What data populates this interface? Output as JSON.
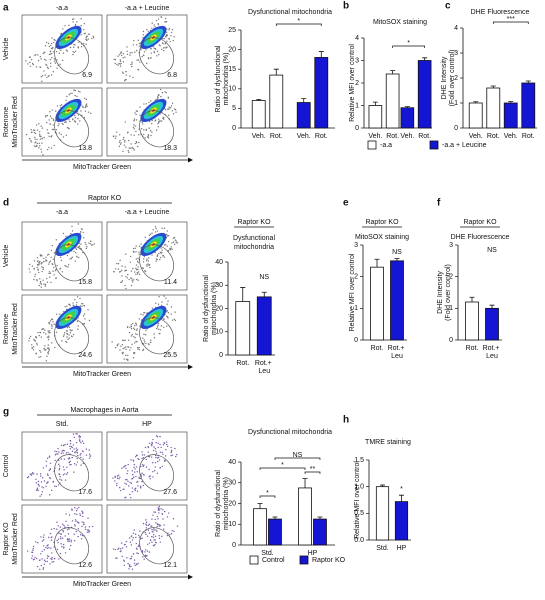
{
  "panel_letters": [
    "a",
    "b",
    "c",
    "d",
    "e",
    "f",
    "g",
    "h"
  ],
  "flow": [
    {
      "columns": [
        "-a.a",
        "-a.a + Leucine"
      ],
      "rows": [
        "Vehicle",
        "Rotenone"
      ],
      "gates": [
        [
          6.9,
          6.8
        ],
        [
          13.8,
          18.3
        ]
      ],
      "y_label": "MitoTracker Red",
      "x_label": "MitoTracker Green"
    },
    {
      "header": "Raptor KO",
      "columns": [
        "-a.a",
        "-a.a + Leucine"
      ],
      "rows": [
        "Vehicle",
        "Rotenone"
      ],
      "gates": [
        [
          15.8,
          11.4
        ],
        [
          24.6,
          25.5
        ]
      ],
      "y_label": "MitoTracker Red",
      "x_label": "MitoTracker Green"
    },
    {
      "header": "Macrophages in Aorta",
      "columns": [
        "Std.",
        "HP"
      ],
      "rows": [
        "Control",
        "Raptor KO"
      ],
      "gates": [
        [
          17.6,
          27.6
        ],
        [
          12.6,
          12.1
        ]
      ],
      "y_label": "MitoTracker Red",
      "x_label": "MitoTracker Green"
    }
  ],
  "chart_data": [
    {
      "type": "bar",
      "title": [
        "Dysfunctional mitochondria"
      ],
      "y_label": [
        "Ratio of dysfunctional",
        "mitochondria (%)"
      ],
      "categories": [
        "Veh.",
        "Rot."
      ],
      "group_by": "series",
      "series": [
        {
          "color": "#ffffff",
          "values": [
            7,
            13.5
          ],
          "errors": [
            0.3,
            1.5
          ]
        },
        {
          "color": "#1515d4",
          "values": [
            6.5,
            18
          ],
          "errors": [
            1,
            1.5
          ]
        }
      ],
      "ylim": [
        0,
        25
      ],
      "yticks": [
        0,
        5,
        10,
        15,
        20,
        25
      ],
      "significance": [
        "*"
      ]
    },
    {
      "type": "bar",
      "title": [
        "MitoSOX staining"
      ],
      "y_label": [
        "Relative MFI over control"
      ],
      "categories": [
        "Veh.",
        "Rot."
      ],
      "group_by": "series",
      "series": [
        {
          "name": "-a.a",
          "color": "#ffffff",
          "values": [
            1,
            2.4
          ],
          "errors": [
            0.15,
            0.15
          ]
        },
        {
          "name": "-a.a + Leucine",
          "color": "#1515d4",
          "values": [
            0.9,
            3.0
          ],
          "errors": [
            0.05,
            0.12
          ]
        }
      ],
      "ylim": [
        0,
        4
      ],
      "yticks": [
        0,
        1,
        2,
        3,
        4
      ],
      "significance": [
        "*"
      ]
    },
    {
      "type": "bar",
      "title": [
        "DHE Fluorescence"
      ],
      "y_label": [
        "DHE Intensity",
        "(Fold over control)"
      ],
      "categories": [
        "Veh.",
        "Rot."
      ],
      "group_by": "series",
      "series": [
        {
          "color": "#ffffff",
          "values": [
            1.0,
            1.6
          ],
          "errors": [
            0.05,
            0.08
          ]
        },
        {
          "color": "#1515d4",
          "values": [
            1.0,
            1.8
          ],
          "errors": [
            0.06,
            0.08
          ]
        }
      ],
      "ylim": [
        0,
        4
      ],
      "yticks": [
        0,
        1,
        2,
        3,
        4
      ],
      "significance": [
        "***"
      ]
    },
    {
      "type": "bar",
      "title": [
        "Raptor KO",
        "Dysfunctional",
        "mitochondria"
      ],
      "y_label": [
        "Ratio of dysfunctional",
        "mitochondria (%)"
      ],
      "categories": [
        "Rot.",
        "Rot.+ Leu"
      ],
      "values": [
        23,
        25
      ],
      "errors": [
        6,
        2
      ],
      "colors": [
        "#ffffff",
        "#1515d4"
      ],
      "ylim": [
        0,
        40
      ],
      "yticks": [
        0,
        10,
        20,
        30,
        40
      ],
      "significance": [
        "NS"
      ]
    },
    {
      "type": "bar",
      "title": [
        "Raptor KO",
        "MitoSOX staining"
      ],
      "y_label": [
        "Relative MFI over control"
      ],
      "categories": [
        "Rot.",
        "Rot.+ Leu"
      ],
      "values": [
        2.3,
        2.5
      ],
      "errors": [
        0.25,
        0.07
      ],
      "colors": [
        "#ffffff",
        "#1515d4"
      ],
      "ylim": [
        0,
        3
      ],
      "yticks": [
        0,
        1,
        2,
        3
      ],
      "significance": [
        "NS"
      ]
    },
    {
      "type": "bar",
      "title": [
        "Raptor KO",
        "DHE Fluorescence"
      ],
      "y_label": [
        "DHE Intensity",
        "(Fold over control)"
      ],
      "categories": [
        "Rot.",
        "Rot.+ Leu"
      ],
      "values": [
        1.2,
        1.0
      ],
      "errors": [
        0.15,
        0.1
      ],
      "colors": [
        "#ffffff",
        "#1515d4"
      ],
      "ylim": [
        0,
        3
      ],
      "yticks": [
        0,
        1,
        2,
        3
      ],
      "significance": [
        "NS"
      ]
    },
    {
      "type": "bar",
      "title": [
        "Dysfunctional mitochondria"
      ],
      "y_label": [
        "Ratio of dysfunctional",
        "mitochondria (%)"
      ],
      "categories": [
        "Std.",
        "HP"
      ],
      "group_by": "category",
      "series": [
        {
          "name": "Control",
          "color": "#ffffff",
          "values": [
            17.5,
            27.5
          ],
          "errors": [
            2.5,
            4.5
          ]
        },
        {
          "name": "Raptor KO",
          "color": "#1515d4",
          "values": [
            12.5,
            12.5
          ],
          "errors": [
            1,
            1
          ]
        }
      ],
      "ylim": [
        0,
        40
      ],
      "yticks": [
        0,
        10,
        20,
        30,
        40
      ],
      "significance": [
        "*",
        "*",
        "NS",
        "**"
      ]
    },
    {
      "type": "bar",
      "title": [
        "TMRE staining"
      ],
      "y_label": [
        "Relative MFI over control"
      ],
      "categories": [
        "Std.",
        "HP"
      ],
      "values": [
        1.0,
        0.72
      ],
      "errors": [
        0.03,
        0.12
      ],
      "colors": [
        "#ffffff",
        "#1515d4"
      ],
      "ylim": [
        0,
        1.5
      ],
      "yticks": [
        {
          "value": 0,
          "label": "0.0"
        },
        {
          "value": 0.5,
          "label": "0.5"
        },
        {
          "value": 1,
          "label": "1.0"
        },
        {
          "value": 1.5,
          "label": "1.5"
        }
      ],
      "significance": [
        "*"
      ]
    }
  ]
}
